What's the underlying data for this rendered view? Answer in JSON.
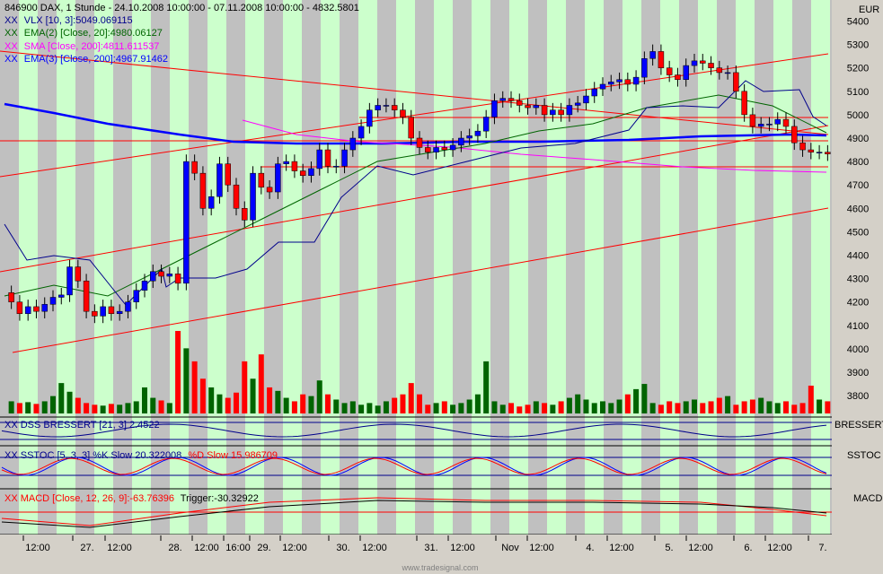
{
  "header": {
    "title": "846900  DAX, 1 Stunde - 24.10.2008 10:00:00 - 07.11.2008 10:00:00 - 4832.5801",
    "currency": "EUR"
  },
  "legend": [
    {
      "prefix": "XX",
      "text": "VLX [10, 3]:5049.069115",
      "color": "#00008b"
    },
    {
      "prefix": "XX",
      "text": "EMA(2) [Close, 20]:4980.06127",
      "color": "#006400"
    },
    {
      "prefix": "XX",
      "text": "SMA [Close, 200]:4811.611537",
      "color": "#ff00ff"
    },
    {
      "prefix": "XX",
      "text": "EMA(3) [Close, 200]:4967.91462",
      "color": "#0000ff"
    }
  ],
  "panels": {
    "dss": {
      "label": "XX DSS BRESSERT [21, 3] 2.4522",
      "side_label": "BRESSERT"
    },
    "sstoc": {
      "label_k": "XX SSTOC [5, 3, 3] %K Slow 20.322008",
      "label_d": "%D Slow 15.986709",
      "side_label": "SSTOC"
    },
    "macd": {
      "label_main": "XX MACD [Close, 12, 26, 9]:-63.76396",
      "label_trigger": "Trigger:-30.32922",
      "side_label": "MACD"
    }
  },
  "watermark": "www.tradesignal.com",
  "colors": {
    "up": "#0000ff",
    "down": "#ff0000",
    "vol_up": "#006400",
    "vol_down": "#ff0000",
    "band_green": "#ccffcc",
    "band_gray": "#c0c0c0",
    "trend": "#ff0000"
  },
  "chart_data": {
    "type": "candlestick",
    "title": "846900  DAX, 1 Stunde - 24.10.2008 10:00:00 - 07.11.2008 10:00:00 - 4832.5801",
    "ylabel": "EUR",
    "ylim": [
      3720,
      5490
    ],
    "y_ticks": [
      3800,
      3900,
      4000,
      4100,
      4200,
      4300,
      4400,
      4500,
      4600,
      4700,
      4800,
      4900,
      5000,
      5100,
      5200,
      5300,
      5400
    ],
    "x_ticks": [
      "12:00",
      "27.",
      "12:00",
      "28.",
      "12:00",
      "16:00",
      "29.",
      "12:00",
      "30.",
      "12:00",
      "31.",
      "12:00",
      "Nov",
      "12:00",
      "4.",
      "12:00",
      "5.",
      "12:00",
      "6.",
      "12:00",
      "7."
    ],
    "closes": [
      4200,
      4150,
      4180,
      4160,
      4190,
      4220,
      4230,
      4350,
      4290,
      4160,
      4140,
      4180,
      4150,
      4160,
      4200,
      4250,
      4290,
      4330,
      4310,
      4320,
      4280,
      4800,
      4750,
      4600,
      4650,
      4790,
      4700,
      4600,
      4550,
      4750,
      4690,
      4670,
      4790,
      4800,
      4760,
      4740,
      4770,
      4850,
      4780,
      4780,
      4850,
      4900,
      4950,
      5020,
      5040,
      5040,
      5020,
      4990,
      4900,
      4860,
      4840,
      4860,
      4850,
      4870,
      4900,
      4910,
      4930,
      4990,
      5060,
      5070,
      5060,
      5040,
      5030,
      5040,
      5000,
      5020,
      5000,
      5040,
      5050,
      5080,
      5110,
      5130,
      5140,
      5150,
      5130,
      5160,
      5240,
      5270,
      5200,
      5170,
      5150,
      5210,
      5230,
      5220,
      5200,
      5180,
      5180,
      5100,
      5000,
      4950,
      4960,
      4960,
      4980,
      4950,
      4880,
      4850,
      4840,
      4840,
      4832.58
    ],
    "volumes": [
      14,
      12,
      13,
      11,
      14,
      20,
      35,
      25,
      18,
      12,
      10,
      9,
      11,
      10,
      12,
      14,
      30,
      18,
      15,
      12,
      95,
      75,
      60,
      40,
      30,
      22,
      18,
      24,
      60,
      40,
      68,
      30,
      26,
      18,
      14,
      22,
      20,
      38,
      22,
      16,
      12,
      14,
      10,
      12,
      9,
      14,
      18,
      22,
      35,
      22,
      10,
      12,
      14,
      10,
      12,
      16,
      22,
      60,
      14,
      10,
      12,
      8,
      10,
      14,
      12,
      10,
      14,
      18,
      22,
      16,
      12,
      14,
      12,
      16,
      22,
      28,
      34,
      12,
      10,
      14,
      12,
      14,
      16,
      12,
      14,
      18,
      20,
      10,
      14,
      16,
      18,
      14,
      12,
      14,
      10,
      12,
      32,
      16,
      14
    ]
  }
}
